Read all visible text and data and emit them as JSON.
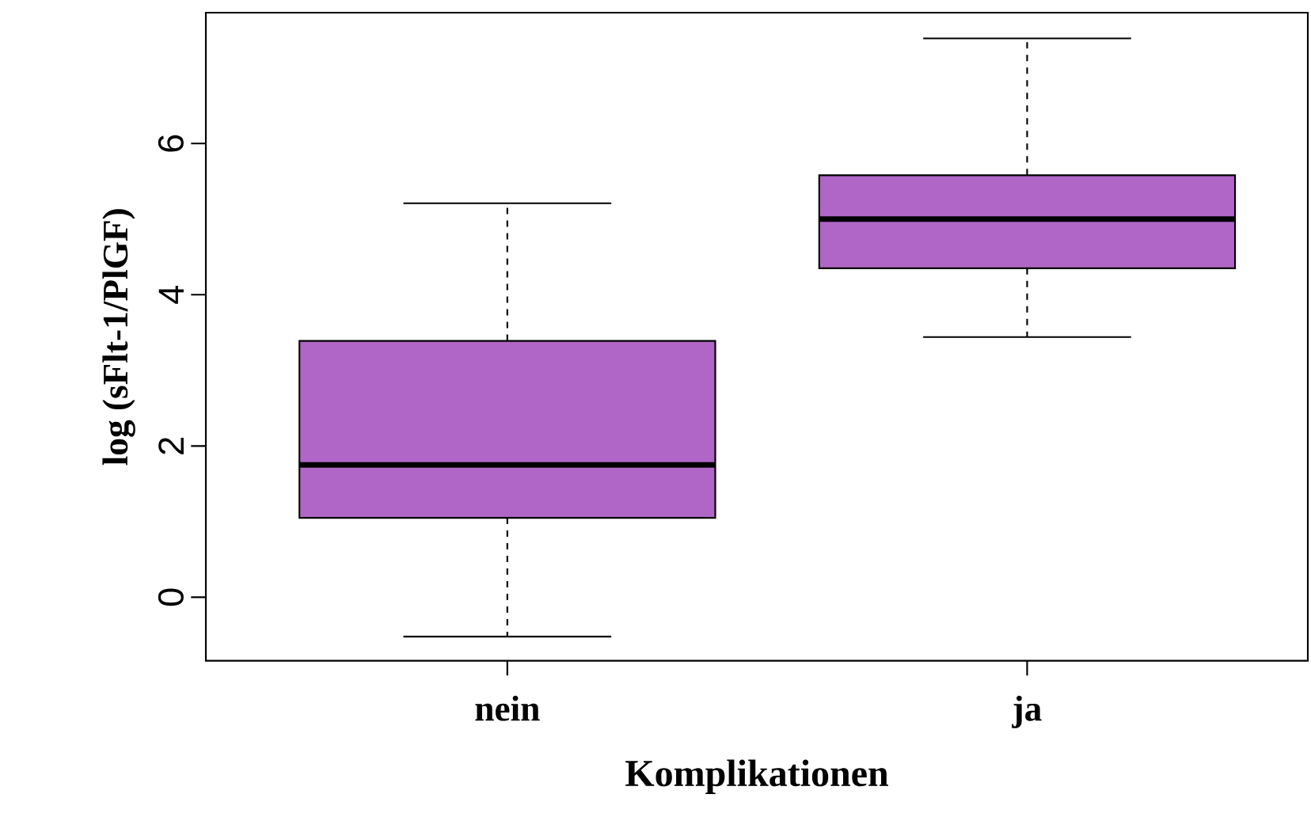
{
  "chart_data": {
    "type": "box",
    "xlabel": "Komplikationen",
    "ylabel": "log (sFlt-1/PlGF)",
    "categories": [
      "nein",
      "ja"
    ],
    "color": "#b066c6",
    "boxes": [
      {
        "low": -0.52,
        "q1": 1.05,
        "median": 1.75,
        "q3": 3.39,
        "high": 5.21
      },
      {
        "low": 3.44,
        "q1": 4.35,
        "median": 5.0,
        "q3": 5.58,
        "high": 7.39
      }
    ],
    "ylim": [
      -0.84,
      7.73
    ],
    "yticks": [
      0,
      2,
      4,
      6
    ],
    "grid": false
  }
}
